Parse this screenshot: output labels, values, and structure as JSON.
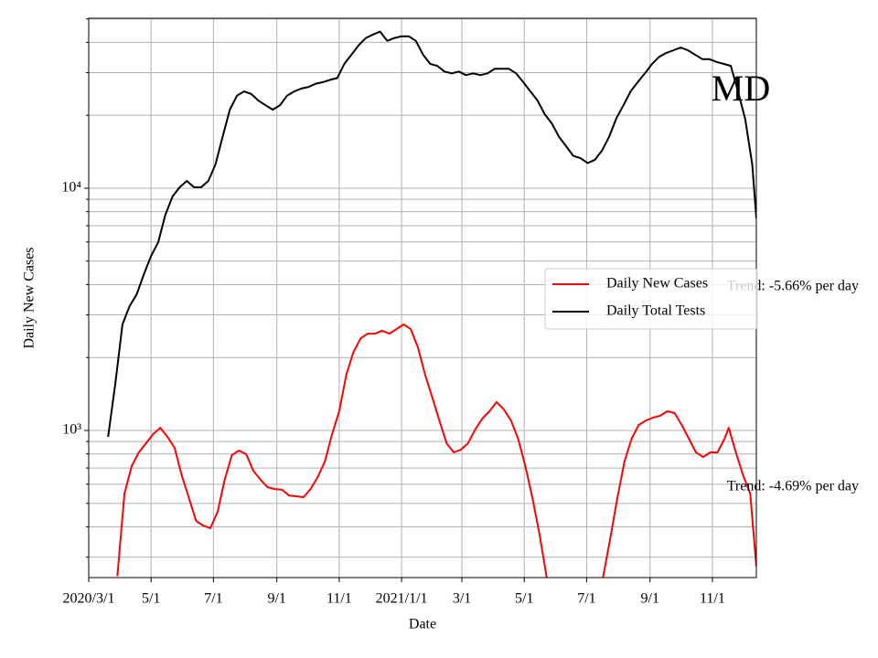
{
  "chart_data": {
    "type": "line",
    "annotations": [
      "MD",
      "Trend: -5.66% per day",
      "Trend: -4.69% per day"
    ],
    "xlabel": "Date",
    "ylabel": "Daily New Cases",
    "yscale": "log",
    "grid": true,
    "legend": "center right",
    "xlim": [
      "2020-03-01",
      "2021-12-14"
    ],
    "xticks": [
      {
        "value": "2020-03-01",
        "label": "2020/3/1"
      },
      {
        "value": "2020-05-01",
        "label": "5/1"
      },
      {
        "value": "2020-07-01",
        "label": "7/1"
      },
      {
        "value": "2020-09-01",
        "label": "9/1"
      },
      {
        "value": "2020-11-01",
        "label": "11/1"
      },
      {
        "value": "2021-01-01",
        "label": "2021/1/1"
      },
      {
        "value": "2021-03-01",
        "label": "3/1"
      },
      {
        "value": "2021-05-01",
        "label": "5/1"
      },
      {
        "value": "2021-07-01",
        "label": "7/1"
      },
      {
        "value": "2021-09-01",
        "label": "9/1"
      },
      {
        "value": "2021-11-01",
        "label": "11/1"
      }
    ],
    "ylim": [
      247,
      50300
    ],
    "yticks": [
      {
        "value": 1000,
        "label": "10³"
      },
      {
        "value": 10000,
        "label": "10⁴"
      }
    ],
    "yminorticks": [
      300,
      400,
      500,
      600,
      700,
      800,
      900,
      2000,
      3000,
      4000,
      5000,
      6000,
      7000,
      8000,
      9000,
      20000,
      30000,
      40000,
      50000
    ],
    "series": [
      {
        "name": "Daily New Cases",
        "color": "#ff0000",
        "x": [
          "2020-03-29",
          "2020-04-05",
          "2020-04-12",
          "2020-04-19",
          "2020-04-26",
          "2020-05-03",
          "2020-05-10",
          "2020-05-17",
          "2020-05-24",
          "2020-05-31",
          "2020-06-07",
          "2020-06-14",
          "2020-06-21",
          "2020-06-28",
          "2020-07-05",
          "2020-07-12",
          "2020-07-19",
          "2020-07-26",
          "2020-08-02",
          "2020-08-09",
          "2020-08-16",
          "2020-08-23",
          "2020-08-30",
          "2020-09-06",
          "2020-09-13",
          "2020-09-20",
          "2020-09-27",
          "2020-10-04",
          "2020-10-11",
          "2020-10-18",
          "2020-10-25",
          "2020-11-01",
          "2020-11-08",
          "2020-11-15",
          "2020-11-22",
          "2020-11-29",
          "2020-12-06",
          "2020-12-13",
          "2020-12-20",
          "2020-12-27",
          "2021-01-03",
          "2021-01-10",
          "2021-01-17",
          "2021-01-24",
          "2021-01-31",
          "2021-02-07",
          "2021-02-14",
          "2021-02-21",
          "2021-02-28",
          "2021-03-07",
          "2021-03-14",
          "2021-03-21",
          "2021-03-28",
          "2021-04-04",
          "2021-04-11",
          "2021-04-18",
          "2021-04-25",
          "2021-05-02",
          "2021-05-09",
          "2021-05-16",
          "2021-05-23",
          "2021-06-20",
          "2021-07-17",
          "2021-07-24",
          "2021-07-31",
          "2021-08-07",
          "2021-08-14",
          "2021-08-21",
          "2021-08-28",
          "2021-09-04",
          "2021-09-11",
          "2021-09-18",
          "2021-09-25",
          "2021-10-02",
          "2021-10-09",
          "2021-10-16",
          "2021-10-23",
          "2021-10-30",
          "2021-11-06",
          "2021-11-13",
          "2021-11-17",
          "2021-11-24",
          "2021-12-01",
          "2021-12-08",
          "2021-12-14"
        ],
        "values": [
          250,
          549,
          713,
          812,
          885,
          966,
          1026,
          941,
          848,
          653,
          526,
          423,
          405,
          395,
          461,
          626,
          791,
          826,
          798,
          682,
          626,
          583,
          573,
          569,
          539,
          535,
          530,
          573,
          642,
          744,
          966,
          1200,
          1700,
          2110,
          2400,
          2510,
          2510,
          2580,
          2510,
          2620,
          2740,
          2620,
          2200,
          1700,
          1370,
          1100,
          885,
          812,
          833,
          885,
          1010,
          1120,
          1200,
          1310,
          1220,
          1100,
          925,
          713,
          526,
          371,
          247,
          null,
          247,
          356,
          526,
          744,
          925,
          1054,
          1100,
          1130,
          1150,
          1200,
          1180,
          1054,
          925,
          812,
          777,
          812,
          812,
          925,
          1026,
          812,
          653,
          549,
          274
        ]
      },
      {
        "name": "Daily Total Tests",
        "color": "#000000",
        "x": [
          "2020-03-20",
          "2020-03-27",
          "2020-04-03",
          "2020-04-10",
          "2020-04-17",
          "2020-04-24",
          "2020-05-01",
          "2020-05-08",
          "2020-05-15",
          "2020-05-22",
          "2020-05-29",
          "2020-06-05",
          "2020-06-12",
          "2020-06-19",
          "2020-06-26",
          "2020-07-03",
          "2020-07-10",
          "2020-07-17",
          "2020-07-24",
          "2020-07-31",
          "2020-08-07",
          "2020-08-14",
          "2020-08-21",
          "2020-08-28",
          "2020-09-04",
          "2020-09-11",
          "2020-09-18",
          "2020-09-25",
          "2020-10-02",
          "2020-10-09",
          "2020-10-16",
          "2020-10-23",
          "2020-10-30",
          "2020-11-06",
          "2020-11-13",
          "2020-11-20",
          "2020-11-27",
          "2020-12-04",
          "2020-12-11",
          "2020-12-18",
          "2020-12-25",
          "2021-01-01",
          "2021-01-08",
          "2021-01-15",
          "2021-01-22",
          "2021-01-29",
          "2021-02-05",
          "2021-02-12",
          "2021-02-19",
          "2021-02-26",
          "2021-03-05",
          "2021-03-12",
          "2021-03-19",
          "2021-03-26",
          "2021-04-02",
          "2021-04-09",
          "2021-04-16",
          "2021-04-23",
          "2021-04-30",
          "2021-05-07",
          "2021-05-14",
          "2021-05-21",
          "2021-05-28",
          "2021-06-04",
          "2021-06-11",
          "2021-06-18",
          "2021-06-25",
          "2021-07-02",
          "2021-07-09",
          "2021-07-16",
          "2021-07-23",
          "2021-07-30",
          "2021-08-06",
          "2021-08-13",
          "2021-08-20",
          "2021-08-27",
          "2021-09-03",
          "2021-09-10",
          "2021-09-17",
          "2021-09-24",
          "2021-10-01",
          "2021-10-08",
          "2021-10-15",
          "2021-10-22",
          "2021-10-29",
          "2021-11-05",
          "2021-11-12",
          "2021-11-19",
          "2021-11-26",
          "2021-12-03",
          "2021-12-10",
          "2021-12-14"
        ],
        "values": [
          941,
          1560,
          2740,
          3260,
          3650,
          4420,
          5250,
          5980,
          7770,
          9250,
          10090,
          10720,
          10090,
          10090,
          10720,
          12540,
          16300,
          21100,
          24100,
          25100,
          24500,
          23000,
          22000,
          21100,
          22000,
          24100,
          25100,
          25800,
          26200,
          27000,
          27400,
          28000,
          28500,
          32600,
          35600,
          38900,
          41700,
          43100,
          44300,
          40600,
          41700,
          42400,
          42400,
          40600,
          35600,
          32600,
          32000,
          30300,
          29800,
          30300,
          29300,
          29800,
          29300,
          29800,
          31100,
          31100,
          31100,
          29800,
          27400,
          25100,
          23000,
          20200,
          18500,
          16300,
          14900,
          13600,
          13300,
          12700,
          13100,
          14300,
          16300,
          19400,
          22000,
          25100,
          27400,
          29800,
          32600,
          34900,
          36200,
          37100,
          38100,
          37100,
          35600,
          34100,
          34100,
          33200,
          32600,
          32000,
          25100,
          19400,
          12540,
          7500
        ]
      }
    ]
  }
}
